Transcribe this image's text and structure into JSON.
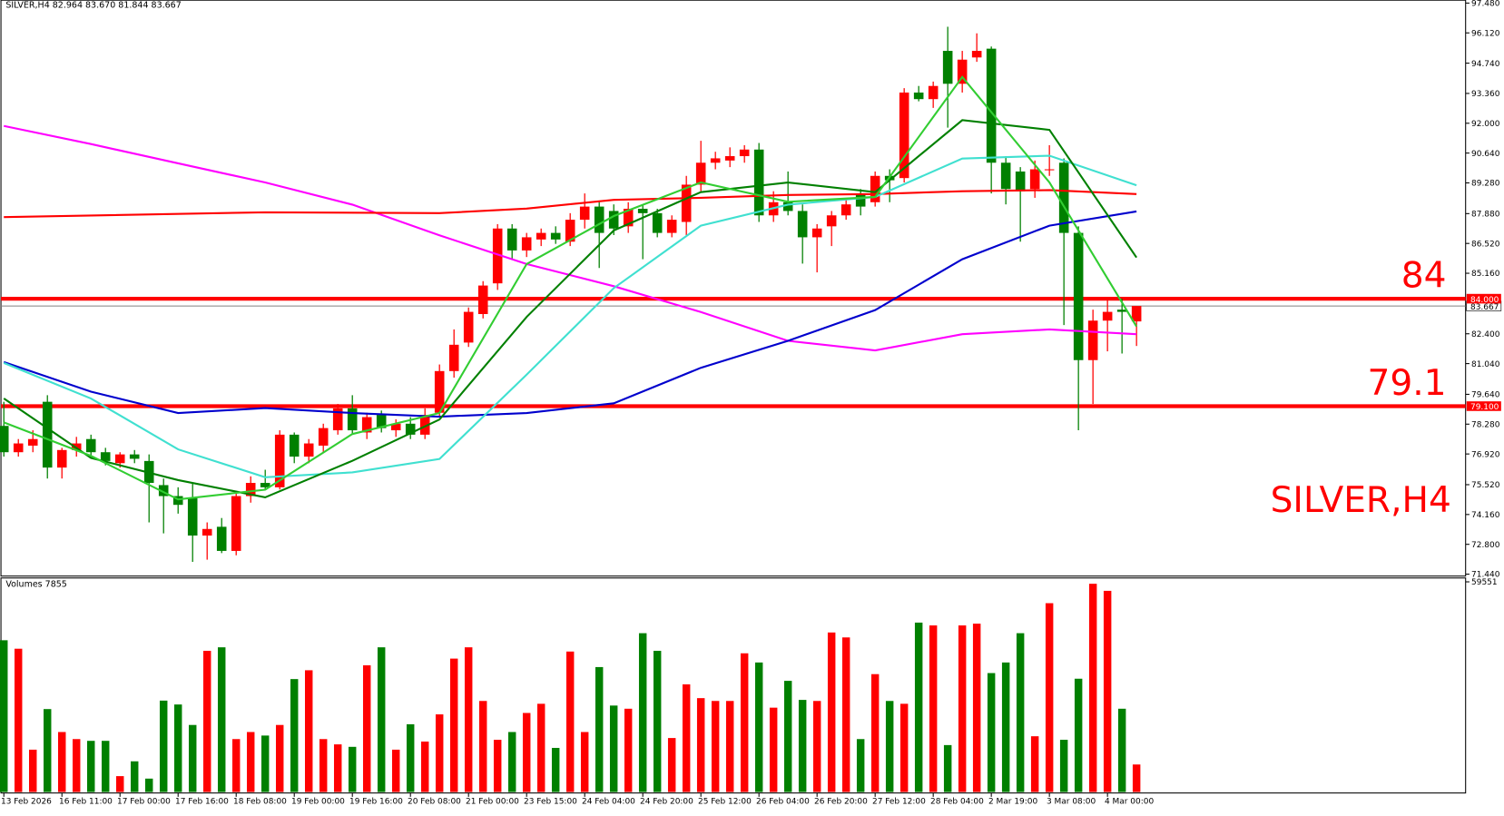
{
  "chart_data": [
    {
      "type": "candlestick",
      "header": "SILVER,H4  82.964 83.670 81.844 83.667",
      "annotation": "SILVER,H4",
      "up_color": "#ff0000",
      "down_color": "#008000",
      "categories": [
        "13 Feb 2026",
        null,
        null,
        null,
        "16 Feb 11:00",
        null,
        null,
        null,
        "17 Feb 00:00",
        null,
        null,
        null,
        "17 Feb 16:00",
        null,
        null,
        null,
        "18 Feb 08:00",
        null,
        null,
        null,
        "19 Feb 00:00",
        null,
        null,
        null,
        "19 Feb 16:00",
        null,
        null,
        null,
        "20 Feb 08:00",
        null,
        null,
        null,
        "21 Feb 00:00",
        null,
        null,
        null,
        "23 Feb 15:00",
        null,
        null,
        null,
        "24 Feb 04:00",
        null,
        null,
        null,
        "24 Feb 20:00",
        null,
        null,
        null,
        "25 Feb 12:00",
        null,
        null,
        null,
        "26 Feb 04:00",
        null,
        null,
        null,
        "26 Feb 20:00",
        null,
        null,
        null,
        "27 Feb 12:00",
        null,
        null,
        null,
        "28 Feb 04:00",
        null,
        null,
        null,
        "2 Mar 19:00",
        null,
        null,
        null,
        "3 Mar 08:00",
        null,
        null,
        null,
        "4 Mar 00:00",
        null,
        null
      ],
      "open": [
        78.2,
        77.0,
        77.3,
        79.3,
        76.3,
        77.1,
        77.6,
        77.0,
        76.5,
        76.9,
        76.6,
        75.5,
        75.0,
        74.9,
        73.2,
        73.6,
        72.5,
        75.0,
        75.6,
        75.4,
        77.8,
        76.8,
        77.3,
        78.0,
        79.0,
        77.9,
        78.7,
        78.0,
        78.3,
        77.8,
        78.8,
        80.7,
        82.0,
        83.3,
        84.7,
        87.2,
        86.2,
        86.7,
        87.0,
        86.6,
        87.6,
        88.2,
        88.0,
        87.3,
        88.1,
        87.9,
        87.0,
        87.5,
        89.2,
        90.2,
        90.3,
        90.5,
        90.8,
        87.8,
        88.4,
        88.0,
        86.8,
        87.3,
        87.8,
        88.8,
        88.4,
        89.6,
        89.5,
        93.4,
        93.1,
        95.3,
        93.8,
        95.0,
        95.4,
        90.2,
        89.8,
        89.0,
        89.9,
        90.2,
        87.0,
        81.2,
        83.0,
        83.5,
        82.964
      ],
      "high": [
        79.3,
        77.6,
        78.0,
        79.6,
        77.2,
        77.7,
        77.8,
        77.2,
        77.0,
        77.1,
        76.9,
        75.8,
        75.4,
        75.6,
        73.8,
        74.0,
        75.2,
        75.9,
        76.2,
        78.0,
        77.9,
        77.6,
        78.3,
        79.2,
        79.6,
        78.8,
        78.9,
        78.5,
        78.6,
        79.0,
        81.0,
        82.6,
        83.6,
        84.8,
        87.4,
        87.4,
        87.0,
        87.2,
        87.3,
        87.9,
        88.8,
        88.4,
        88.3,
        88.4,
        88.3,
        88.1,
        87.8,
        89.6,
        91.2,
        90.7,
        90.9,
        91.0,
        91.1,
        88.9,
        89.8,
        88.3,
        87.4,
        88.0,
        88.5,
        89.0,
        89.8,
        89.9,
        93.6,
        93.7,
        93.9,
        96.4,
        95.3,
        96.1,
        95.5,
        90.5,
        90.0,
        90.3,
        91.0,
        90.4,
        87.3,
        83.5,
        84.0,
        84.0,
        83.67
      ],
      "low": [
        76.8,
        76.8,
        77.0,
        75.8,
        75.8,
        76.8,
        76.8,
        76.4,
        76.3,
        76.5,
        73.8,
        73.3,
        74.2,
        72.0,
        72.1,
        72.4,
        72.3,
        74.7,
        75.3,
        75.3,
        76.5,
        76.5,
        77.0,
        77.8,
        77.8,
        77.6,
        77.9,
        77.7,
        77.6,
        77.6,
        78.6,
        80.4,
        81.8,
        83.1,
        84.4,
        85.8,
        85.9,
        86.4,
        86.5,
        86.4,
        87.2,
        85.4,
        86.9,
        87.0,
        85.8,
        86.8,
        86.8,
        86.9,
        88.9,
        89.9,
        90.0,
        90.2,
        87.5,
        87.5,
        87.8,
        85.6,
        85.2,
        86.4,
        87.6,
        87.8,
        88.2,
        88.4,
        89.3,
        93.0,
        92.7,
        91.8,
        93.4,
        94.8,
        88.8,
        88.3,
        86.6,
        88.6,
        89.6,
        82.8,
        78.0,
        79.2,
        81.6,
        81.5,
        81.844
      ],
      "close": [
        77.0,
        77.4,
        77.6,
        76.3,
        77.1,
        77.4,
        77.0,
        76.6,
        76.9,
        76.7,
        75.6,
        75.0,
        74.6,
        73.2,
        73.5,
        72.5,
        75.0,
        75.6,
        75.4,
        77.8,
        76.8,
        77.4,
        78.1,
        79.0,
        78.0,
        78.6,
        78.1,
        78.3,
        77.8,
        78.7,
        80.7,
        81.9,
        83.4,
        84.6,
        87.2,
        86.2,
        86.8,
        87.0,
        86.7,
        87.6,
        88.2,
        87.0,
        87.2,
        88.1,
        87.9,
        87.0,
        87.6,
        89.2,
        90.2,
        90.4,
        90.5,
        90.8,
        87.8,
        88.4,
        88.0,
        86.8,
        87.2,
        87.8,
        88.3,
        88.2,
        89.6,
        89.4,
        93.4,
        93.1,
        93.7,
        93.8,
        94.9,
        95.3,
        90.2,
        89.0,
        88.9,
        89.9,
        89.9,
        87.0,
        81.2,
        83.0,
        83.4,
        83.4,
        83.667
      ],
      "lines": [
        {
          "color": "#ff00ff",
          "x": [
            0,
            6,
            12,
            18,
            24,
            30,
            36,
            42,
            48,
            54,
            60,
            66,
            72,
            78
          ],
          "values": [
            91.88,
            91.05,
            90.17,
            89.3,
            88.29,
            86.89,
            85.58,
            84.57,
            83.39,
            82.08,
            81.64,
            82.38,
            82.6,
            82.38
          ]
        },
        {
          "color": "#ff0000",
          "x": [
            0,
            18,
            30,
            36,
            42,
            48,
            54,
            60,
            66,
            72,
            78
          ],
          "values": [
            87.72,
            87.94,
            87.9,
            88.11,
            88.51,
            88.6,
            88.73,
            88.77,
            88.9,
            88.95,
            88.77
          ]
        },
        {
          "color": "#0000cd",
          "x": [
            0,
            6,
            12,
            18,
            24,
            30,
            36,
            42,
            48,
            54,
            60,
            66,
            72,
            78
          ],
          "values": [
            81.11,
            79.76,
            78.79,
            79.01,
            78.79,
            78.62,
            78.79,
            79.23,
            80.85,
            82.08,
            83.48,
            85.8,
            87.33,
            87.98
          ]
        },
        {
          "color": "#40e0d0",
          "x": [
            0,
            6,
            12,
            18,
            24,
            30,
            36,
            42,
            48,
            54,
            60,
            66,
            72,
            78
          ],
          "values": [
            81.07,
            79.45,
            77.13,
            75.86,
            76.08,
            76.69,
            80.54,
            84.48,
            87.33,
            88.29,
            88.64,
            90.39,
            90.52,
            89.17
          ]
        },
        {
          "color": "#008000",
          "x": [
            0,
            6,
            12,
            18,
            24,
            30,
            36,
            42,
            48,
            54,
            60,
            66,
            72,
            78
          ],
          "values": [
            79.45,
            76.74,
            75.73,
            74.94,
            76.61,
            78.49,
            83.17,
            87.11,
            88.86,
            89.3,
            88.86,
            92.14,
            91.7,
            85.88
          ]
        },
        {
          "color": "#32cd32",
          "x": [
            0,
            6,
            12,
            18,
            24,
            30,
            36,
            42,
            48,
            54,
            60,
            66,
            72,
            78
          ],
          "values": [
            78.36,
            76.83,
            74.85,
            75.29,
            77.83,
            78.79,
            85.58,
            87.77,
            89.3,
            88.42,
            88.64,
            94.11,
            89.3,
            82.73
          ]
        }
      ],
      "levels": [
        {
          "value": 84,
          "label": "84",
          "axis_label": "84.000",
          "color": "#ff0000"
        },
        {
          "value": 79.1,
          "label": "79.1",
          "axis_label": "79.100",
          "color": "#ff0000"
        }
      ],
      "current_price": {
        "value": 83.667,
        "label": "83.667"
      },
      "ylim": [
        71.44,
        97.48
      ],
      "yticks": [
        {
          "value": 97.48,
          "label": "97.480"
        },
        {
          "value": 96.12,
          "label": "96.120"
        },
        {
          "value": 94.74,
          "label": "94.740"
        },
        {
          "value": 93.36,
          "label": "93.360"
        },
        {
          "value": 92,
          "label": "92.000"
        },
        {
          "value": 90.64,
          "label": "90.640"
        },
        {
          "value": 89.28,
          "label": "89.280"
        },
        {
          "value": 87.88,
          "label": "87.880"
        },
        {
          "value": 86.52,
          "label": "86.520"
        },
        {
          "value": 85.16,
          "label": "85.160"
        },
        {
          "value": 82.4,
          "label": "82.400"
        },
        {
          "value": 81.04,
          "label": "81.040"
        },
        {
          "value": 79.64,
          "label": "79.640"
        },
        {
          "value": 78.28,
          "label": "78.280"
        },
        {
          "value": 76.92,
          "label": "76.920"
        },
        {
          "value": 75.52,
          "label": "75.520"
        },
        {
          "value": 74.16,
          "label": "74.160"
        },
        {
          "value": 72.8,
          "label": "72.800"
        },
        {
          "value": 71.44,
          "label": "71.440"
        }
      ]
    },
    {
      "type": "bar",
      "title": "Volumes 7855",
      "values": [
        43000,
        40600,
        12000,
        23500,
        17000,
        15000,
        14500,
        14500,
        4500,
        8700,
        3800,
        25900,
        24800,
        19000,
        40000,
        41000,
        15000,
        17000,
        16000,
        19000,
        32000,
        34500,
        15000,
        13500,
        12800,
        35900,
        41000,
        12000,
        19200,
        14300,
        22000,
        37800,
        41000,
        25800,
        14800,
        17000,
        22400,
        25000,
        12500,
        39800,
        17000,
        35400,
        24500,
        23600,
        45000,
        40000,
        15300,
        30500,
        26600,
        25800,
        25800,
        39300,
        36700,
        23900,
        31500,
        26100,
        25800,
        45200,
        43800,
        15000,
        33400,
        25800,
        25000,
        48000,
        47200,
        13300,
        47200,
        47700,
        33700,
        36700,
        45000,
        15800,
        53500,
        14800,
        32100,
        59000,
        57000,
        23600,
        7800
      ],
      "ylim": [
        0,
        59551
      ],
      "yticks": [
        59551
      ]
    }
  ]
}
